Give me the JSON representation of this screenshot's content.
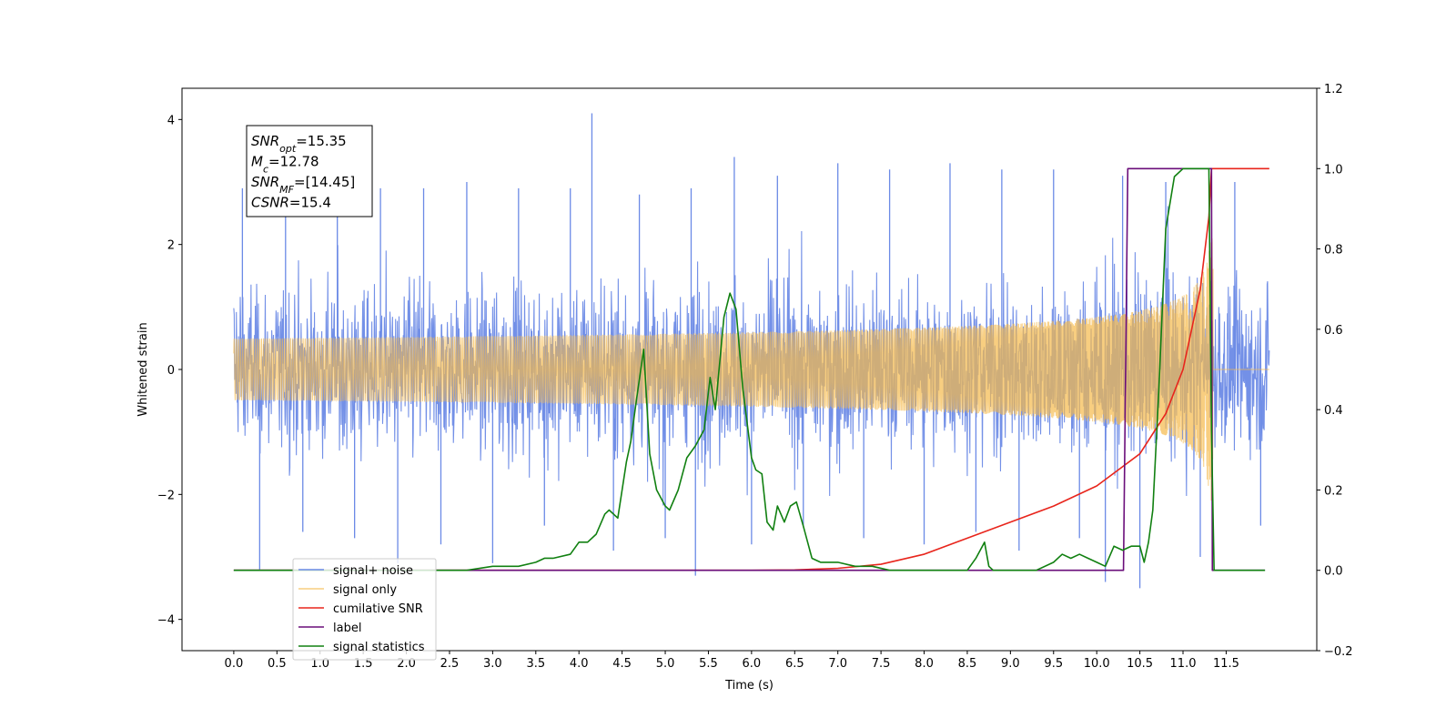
{
  "chart_data": {
    "type": "line",
    "xlabel": "Time (s)",
    "ylabel": "Whitened strain",
    "xlim": [
      -0.6,
      12.55
    ],
    "ylim": [
      -4.5,
      4.5
    ],
    "y2lim": [
      -0.2,
      1.2
    ],
    "x_ticks": [
      "0.0",
      "0.5",
      "1.0",
      "1.5",
      "2.0",
      "2.5",
      "3.0",
      "3.5",
      "4.0",
      "4.5",
      "5.0",
      "5.5",
      "6.0",
      "6.5",
      "7.0",
      "7.5",
      "8.0",
      "8.5",
      "9.0",
      "9.5",
      "10.0",
      "10.5",
      "11.0",
      "11.5"
    ],
    "y_ticks": [
      "4",
      "2",
      "0",
      "−2",
      "−4"
    ],
    "y2_ticks": [
      "1.2",
      "1.0",
      "0.8",
      "0.6",
      "0.4",
      "0.2",
      "0.0",
      "−0.2"
    ],
    "legend_position": "lower-left",
    "annotation": [
      {
        "name": "SNR",
        "sub": "opt",
        "value": "=15.35"
      },
      {
        "name": "M",
        "sub": "c",
        "value": "=12.78"
      },
      {
        "name": "SNR",
        "sub": "MF",
        "value": "=[14.45]"
      },
      {
        "name": "CSNR",
        "sub": "",
        "value": "=15.4"
      }
    ],
    "series": [
      {
        "name": "signal+ noise",
        "color": "#6b8ae6",
        "axis": "left",
        "style": "noise-envelope",
        "x_range": [
          0.0,
          12.0
        ],
        "typical_amplitude": 1.6,
        "spikes": [
          [
            0.1,
            2.9
          ],
          [
            0.3,
            -3.2
          ],
          [
            0.6,
            3.1
          ],
          [
            0.8,
            -2.6
          ],
          [
            1.2,
            3.0
          ],
          [
            1.4,
            -2.7
          ],
          [
            1.7,
            2.9
          ],
          [
            1.9,
            -3.1
          ],
          [
            2.2,
            2.9
          ],
          [
            2.4,
            -2.8
          ],
          [
            2.7,
            3.0
          ],
          [
            3.0,
            -3.1
          ],
          [
            3.3,
            2.9
          ],
          [
            3.6,
            -2.5
          ],
          [
            3.9,
            2.9
          ],
          [
            4.15,
            4.1
          ],
          [
            4.4,
            -2.9
          ],
          [
            4.7,
            2.8
          ],
          [
            5.0,
            -2.7
          ],
          [
            5.3,
            2.9
          ],
          [
            5.35,
            -3.3
          ],
          [
            5.8,
            3.4
          ],
          [
            6.0,
            -2.8
          ],
          [
            6.3,
            3.1
          ],
          [
            6.6,
            -2.5
          ],
          [
            7.0,
            3.3
          ],
          [
            7.3,
            -2.7
          ],
          [
            7.6,
            3.2
          ],
          [
            8.0,
            -2.8
          ],
          [
            8.3,
            3.3
          ],
          [
            8.6,
            -2.6
          ],
          [
            8.9,
            3.2
          ],
          [
            9.1,
            -2.9
          ],
          [
            9.5,
            3.2
          ],
          [
            9.8,
            -2.7
          ],
          [
            10.1,
            -3.4
          ],
          [
            10.3,
            3.1
          ],
          [
            10.5,
            -3.5
          ],
          [
            10.8,
            3.0
          ],
          [
            11.2,
            -3.0
          ],
          [
            11.6,
            3.0
          ],
          [
            11.9,
            -2.5
          ]
        ]
      },
      {
        "name": "signal only",
        "color": "#f5b94a",
        "axis": "left",
        "style": "chirp",
        "x_range": [
          0.0,
          12.0
        ],
        "chirp_end": 11.35,
        "peak_amplitude": 2.1
      },
      {
        "name": "cumilative SNR",
        "color": "#e8251c",
        "axis": "right",
        "x": [
          0.0,
          6.0,
          6.5,
          7.0,
          7.5,
          8.0,
          8.5,
          9.0,
          9.5,
          10.0,
          10.5,
          10.8,
          11.0,
          11.2,
          11.3,
          11.33,
          12.0
        ],
        "values": [
          0.0,
          0.0,
          0.001,
          0.005,
          0.015,
          0.04,
          0.08,
          0.12,
          0.16,
          0.21,
          0.29,
          0.39,
          0.5,
          0.7,
          0.88,
          1.0,
          1.0
        ]
      },
      {
        "name": "label",
        "color": "#6a0d7a",
        "axis": "right",
        "x": [
          0.0,
          10.31,
          10.36,
          11.33,
          11.34,
          11.95
        ],
        "values": [
          0.0,
          0.0,
          1.0,
          1.0,
          0.0,
          0.0
        ]
      },
      {
        "name": "signal statistics",
        "color": "#118011",
        "axis": "right",
        "x": [
          0.0,
          2.7,
          3.0,
          3.3,
          3.5,
          3.6,
          3.7,
          3.9,
          4.0,
          4.1,
          4.2,
          4.3,
          4.35,
          4.45,
          4.55,
          4.6,
          4.67,
          4.75,
          4.82,
          4.9,
          5.0,
          5.05,
          5.15,
          5.25,
          5.35,
          5.45,
          5.52,
          5.58,
          5.68,
          5.75,
          5.82,
          5.9,
          6.0,
          6.05,
          6.12,
          6.18,
          6.25,
          6.3,
          6.38,
          6.45,
          6.52,
          6.6,
          6.7,
          6.8,
          7.0,
          7.2,
          7.4,
          7.6,
          8.0,
          8.5,
          8.6,
          8.7,
          8.75,
          8.8,
          8.85,
          9.0,
          9.3,
          9.5,
          9.6,
          9.7,
          9.8,
          9.9,
          10.0,
          10.1,
          10.2,
          10.3,
          10.4,
          10.5,
          10.55,
          10.6,
          10.65,
          10.72,
          10.8,
          10.9,
          11.0,
          11.1,
          11.2,
          11.3,
          11.33,
          11.36,
          11.95
        ],
        "values": [
          0.0,
          0.0,
          0.01,
          0.01,
          0.02,
          0.03,
          0.03,
          0.04,
          0.07,
          0.07,
          0.09,
          0.14,
          0.15,
          0.13,
          0.27,
          0.32,
          0.43,
          0.55,
          0.29,
          0.2,
          0.16,
          0.15,
          0.2,
          0.28,
          0.31,
          0.35,
          0.48,
          0.4,
          0.63,
          0.69,
          0.65,
          0.45,
          0.28,
          0.25,
          0.24,
          0.12,
          0.1,
          0.16,
          0.12,
          0.16,
          0.17,
          0.11,
          0.03,
          0.02,
          0.02,
          0.01,
          0.01,
          0.0,
          0.0,
          0.0,
          0.03,
          0.07,
          0.01,
          0.0,
          0.0,
          0.0,
          0.0,
          0.02,
          0.04,
          0.03,
          0.04,
          0.03,
          0.02,
          0.01,
          0.06,
          0.05,
          0.06,
          0.06,
          0.02,
          0.07,
          0.15,
          0.45,
          0.85,
          0.98,
          1.0,
          1.0,
          1.0,
          1.0,
          0.35,
          0.0,
          0.0
        ]
      }
    ]
  }
}
